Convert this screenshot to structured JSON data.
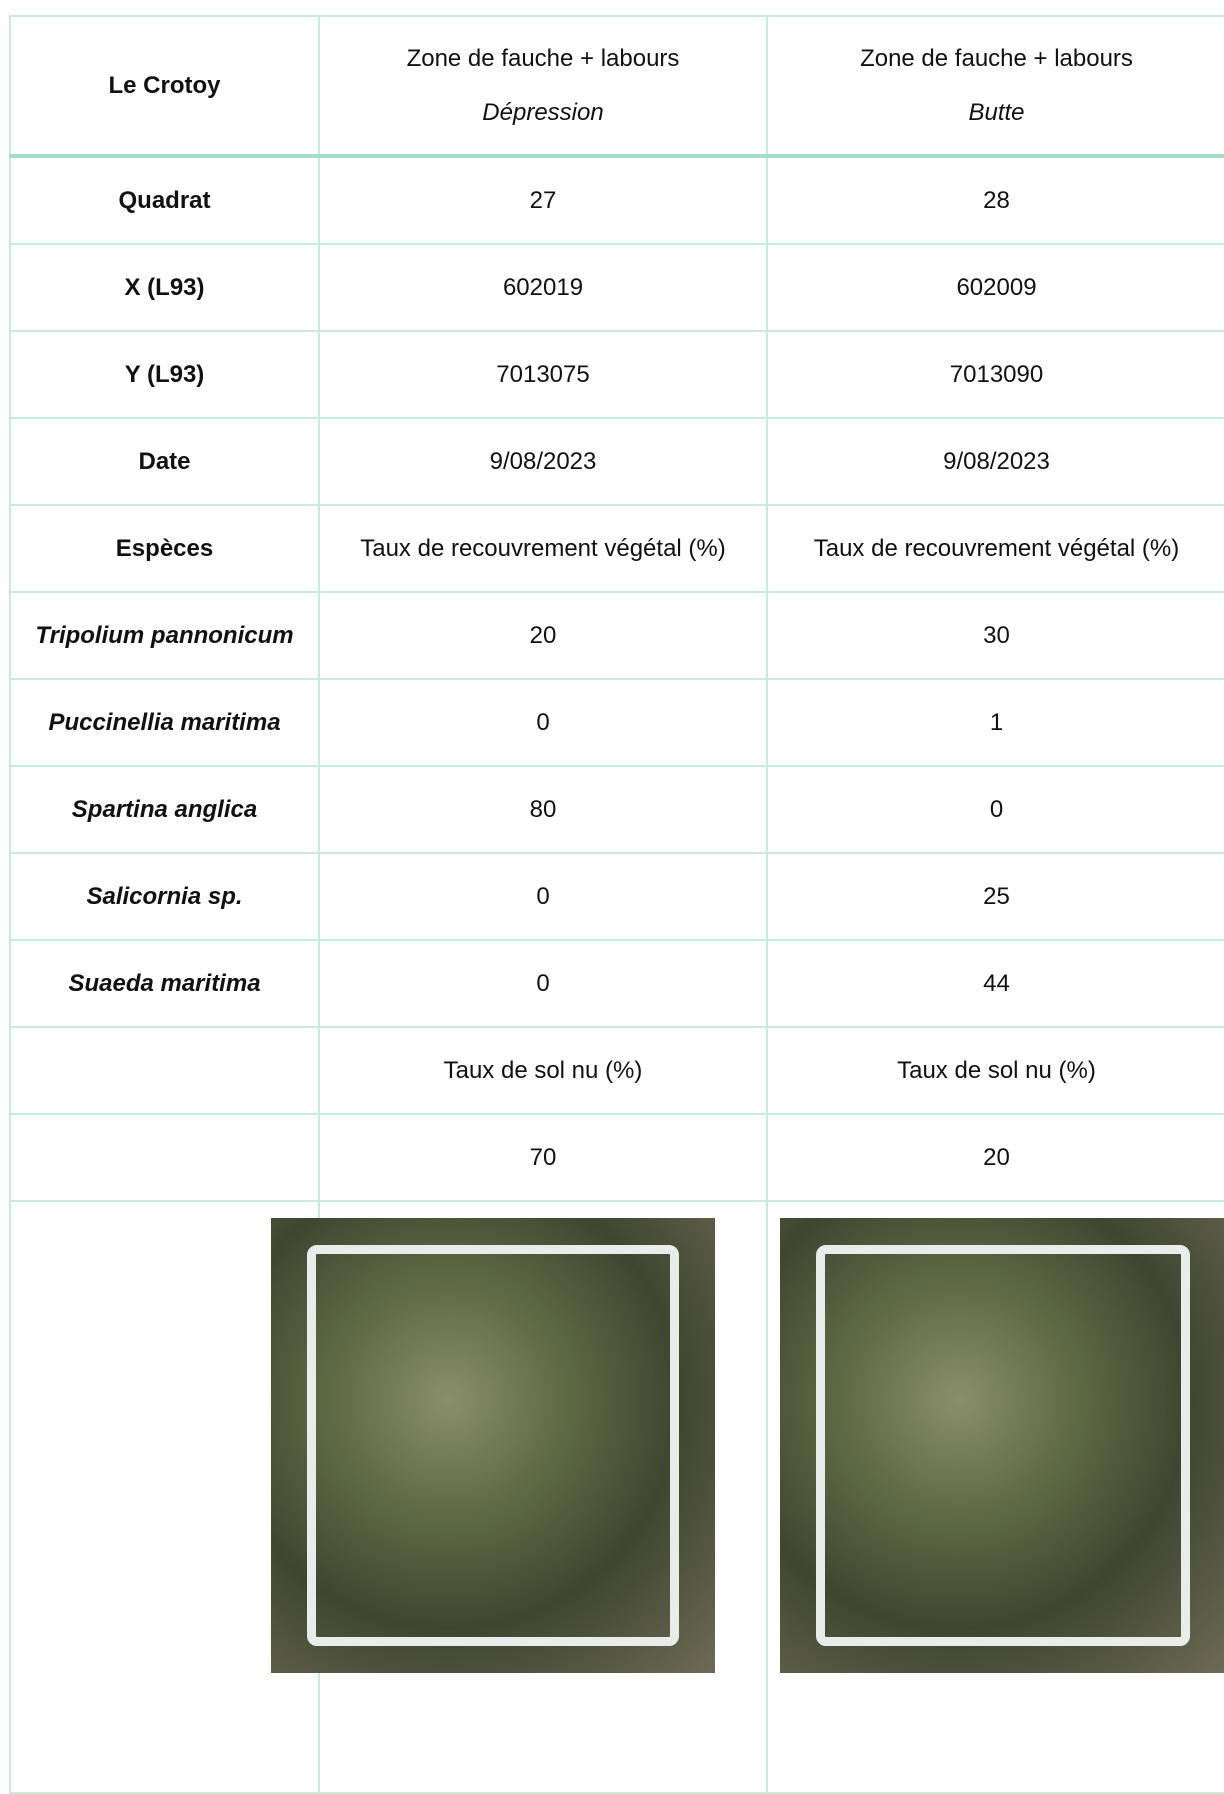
{
  "header": {
    "title": "Le Crotoy",
    "columns": [
      {
        "title": "Zone de fauche + labours",
        "subtitle": "Dépression"
      },
      {
        "title": "Zone de fauche + labours",
        "subtitle": "Butte"
      }
    ]
  },
  "rows": [
    {
      "label": "Quadrat",
      "values": [
        27,
        28
      ]
    },
    {
      "label": "X (L93)",
      "values": [
        602019,
        602009
      ]
    },
    {
      "label": "Y (L93)",
      "values": [
        7013075,
        7013090
      ]
    },
    {
      "label": "Date",
      "values": [
        "9/08/2023",
        "9/08/2023"
      ]
    },
    {
      "label": "Espèces",
      "values": [
        "Taux de recouvrement végétal (%)",
        "Taux de recouvrement végétal (%)"
      ]
    }
  ],
  "species": [
    {
      "label": "Tripolium pannonicum",
      "values": [
        20,
        30
      ]
    },
    {
      "label": "Puccinellia maritima",
      "values": [
        0,
        1
      ]
    },
    {
      "label": "Spartina anglica",
      "values": [
        80,
        0
      ]
    },
    {
      "label": "Salicornia sp.",
      "values": [
        0,
        25
      ]
    },
    {
      "label": "Suaeda maritima",
      "values": [
        0,
        44
      ]
    }
  ],
  "bare_soil": {
    "header": [
      "Taux de sol nu (%)",
      "Taux de sol nu (%)"
    ],
    "values": [
      70,
      20
    ]
  }
}
